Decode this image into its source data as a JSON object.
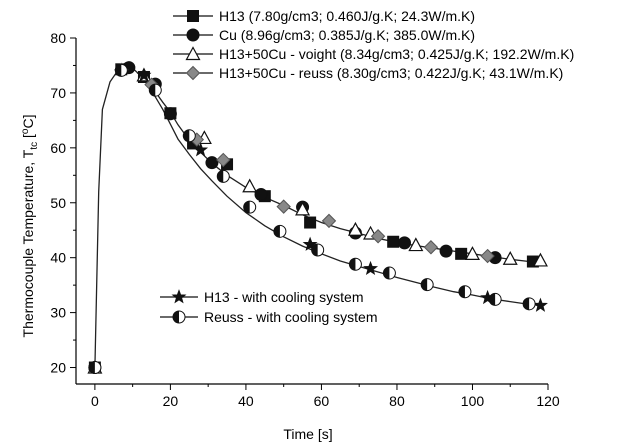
{
  "chart_data": {
    "type": "line",
    "xlabel": "Time [s]",
    "ylabel_parts": [
      "Thermocouple Temperature, T",
      "tc",
      " [",
      "o",
      "C]"
    ],
    "xlim": [
      -5,
      120
    ],
    "ylim": [
      17,
      80
    ],
    "xticks": [
      0,
      20,
      40,
      60,
      80,
      100,
      120
    ],
    "yticks": [
      20,
      30,
      40,
      50,
      60,
      70,
      80
    ],
    "grid": false,
    "legend_top": [
      {
        "label": "H13 (7.80g/cm3; 0.460J/g.K; 24.3W/m.K)",
        "marker": "square",
        "color": "#111111"
      },
      {
        "label": "Cu (8.96g/cm3; 0.385J/g.K; 385.0W/m.K)",
        "marker": "circle",
        "color": "#111111"
      },
      {
        "label": "H13+50Cu - voight (8.34g/cm3; 0.425J/g.K; 192.2W/m.K)",
        "marker": "triangle-open",
        "color": "#111111"
      },
      {
        "label": "H13+50Cu - reuss (8.30g/cm3; 0.422J/g.K; 43.1W/m.K)",
        "marker": "diamond-gray",
        "color": "#777777"
      }
    ],
    "legend_bottom": [
      {
        "label": "H13 - with cooling system",
        "marker": "star",
        "color": "#111111"
      },
      {
        "label": "Reuss - with cooling system",
        "marker": "half-circle",
        "color": "#111111"
      }
    ],
    "series": [
      {
        "name": "H13 (7.80g/cm3; 0.460J/g.K; 24.3W/m.K)",
        "marker": "square",
        "curve": [
          [
            0,
            20
          ],
          [
            1,
            52
          ],
          [
            2,
            67
          ],
          [
            4,
            72
          ],
          [
            6,
            74
          ],
          [
            8,
            74.5
          ],
          [
            10,
            74.5
          ],
          [
            12,
            73.2
          ],
          [
            14,
            71.7
          ],
          [
            16,
            70.2
          ],
          [
            18,
            68.3
          ],
          [
            20,
            66.5
          ],
          [
            22,
            64.2
          ],
          [
            25,
            61.4
          ],
          [
            28,
            59.2
          ],
          [
            31,
            57.2
          ],
          [
            35,
            55
          ],
          [
            40,
            52.8
          ],
          [
            45,
            51
          ],
          [
            50,
            49.5
          ],
          [
            55,
            47.8
          ],
          [
            60,
            46.4
          ],
          [
            65,
            45.3
          ],
          [
            70,
            44.4
          ],
          [
            75,
            43.5
          ],
          [
            80,
            42.8
          ],
          [
            85,
            42.2
          ],
          [
            90,
            41.7
          ],
          [
            95,
            41.2
          ],
          [
            100,
            40.7
          ],
          [
            105,
            40.2
          ],
          [
            110,
            39.7
          ],
          [
            115,
            39.3
          ],
          [
            118,
            39
          ]
        ],
        "points": [
          [
            0,
            20
          ],
          [
            7,
            74.3
          ],
          [
            13,
            72.9
          ],
          [
            20,
            66.3
          ],
          [
            26,
            60.8
          ],
          [
            35,
            57
          ],
          [
            45,
            51.2
          ],
          [
            57,
            46.4
          ],
          [
            79,
            42.9
          ],
          [
            97,
            40.7
          ],
          [
            116,
            39.3
          ]
        ]
      },
      {
        "name": "Cu (8.96g/cm3; 0.385J/g.K; 385.0W/m.K)",
        "marker": "circle",
        "points": [
          [
            0,
            20
          ],
          [
            9,
            74.6
          ],
          [
            16,
            71.6
          ],
          [
            20,
            66.2
          ],
          [
            31,
            57.3
          ],
          [
            44,
            51.5
          ],
          [
            55,
            49.2
          ],
          [
            69,
            44.5
          ],
          [
            82,
            42.7
          ],
          [
            93,
            41.2
          ],
          [
            106,
            40
          ]
        ]
      },
      {
        "name": "H13+50Cu - voight (8.34g/cm3; 0.425J/g.K; 192.2W/m.K)",
        "marker": "triangle-open",
        "points": [
          [
            0,
            20
          ],
          [
            13,
            73.2
          ],
          [
            29,
            61.8
          ],
          [
            41,
            53
          ],
          [
            55,
            48.8
          ],
          [
            69,
            45.1
          ],
          [
            73,
            44.4
          ],
          [
            85,
            42.3
          ],
          [
            100,
            40.7
          ],
          [
            110,
            39.8
          ],
          [
            118,
            39.5
          ]
        ]
      },
      {
        "name": "H13+50Cu - reuss (8.30g/cm3; 0.422J/g.K; 43.1W/m.K)",
        "marker": "diamond-gray",
        "points": [
          [
            7,
            74.2
          ],
          [
            15,
            71.5
          ],
          [
            27,
            61.5
          ],
          [
            34,
            57.8
          ],
          [
            50,
            49.3
          ],
          [
            62,
            46.7
          ],
          [
            75,
            43.9
          ],
          [
            89,
            41.9
          ],
          [
            104,
            40.3
          ]
        ]
      },
      {
        "name": "H13 - with cooling system",
        "marker": "star",
        "curve": [
          [
            12,
            73.2
          ],
          [
            14,
            71.5
          ],
          [
            16,
            69.3
          ],
          [
            18,
            67
          ],
          [
            20,
            64.3
          ],
          [
            22,
            61.6
          ],
          [
            25,
            58.8
          ],
          [
            28,
            56.2
          ],
          [
            31,
            54
          ],
          [
            35,
            51.2
          ],
          [
            40,
            48.2
          ],
          [
            45,
            45.8
          ],
          [
            50,
            43.8
          ],
          [
            55,
            42.1
          ],
          [
            60,
            40.7
          ],
          [
            65,
            39.4
          ],
          [
            70,
            38.4
          ],
          [
            75,
            37.4
          ],
          [
            80,
            36.4
          ],
          [
            85,
            35.5
          ],
          [
            90,
            34.6
          ],
          [
            95,
            33.8
          ],
          [
            100,
            33.2
          ],
          [
            105,
            32.5
          ],
          [
            110,
            32
          ],
          [
            115,
            31.5
          ],
          [
            118,
            31.3
          ]
        ],
        "points": [
          [
            13,
            73.2
          ],
          [
            28,
            59.6
          ],
          [
            57,
            42.4
          ],
          [
            73,
            38
          ],
          [
            104,
            32.7
          ],
          [
            118,
            31.3
          ]
        ]
      },
      {
        "name": "Reuss - with cooling system",
        "marker": "half-circle",
        "points": [
          [
            0,
            20
          ],
          [
            7,
            74.1
          ],
          [
            16,
            70.5
          ],
          [
            25,
            62.2
          ],
          [
            34,
            54.8
          ],
          [
            41,
            49.2
          ],
          [
            49,
            44.8
          ],
          [
            59,
            41.4
          ],
          [
            69,
            38.8
          ],
          [
            78,
            37.2
          ],
          [
            88,
            35.1
          ],
          [
            98,
            33.8
          ],
          [
            106,
            32.4
          ],
          [
            115,
            31.6
          ]
        ]
      }
    ]
  }
}
